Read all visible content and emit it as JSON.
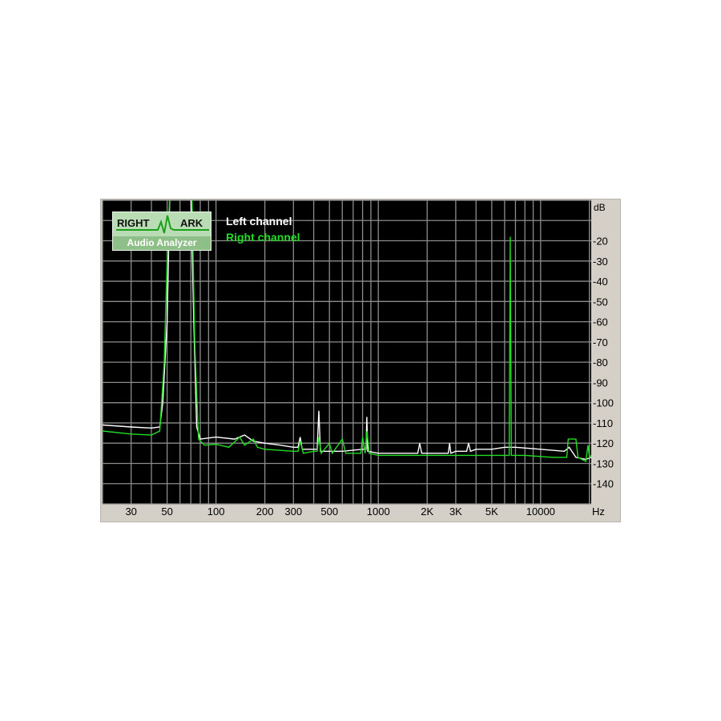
{
  "chart_data": {
    "type": "line",
    "title": "",
    "xscale": "log",
    "xlim": [
      20,
      20500
    ],
    "ylim": [
      -150,
      0
    ],
    "grid": true,
    "legend_placement": "top-left",
    "ylabel": "dB",
    "xlabel": "Hz",
    "yticks": [
      -20,
      -30,
      -40,
      -50,
      -60,
      -70,
      -80,
      -90,
      -100,
      -110,
      -120,
      -130,
      -140
    ],
    "ytick_labels": [
      "-20",
      "-30",
      "-40",
      "-50",
      "-60",
      "-70",
      "-80",
      "-90",
      "-100",
      "-110",
      "-120",
      "-130",
      "-140"
    ],
    "xticks": [
      30,
      50,
      100,
      200,
      300,
      500,
      1000,
      2000,
      3000,
      5000,
      10000
    ],
    "xtick_labels": [
      "30",
      "50",
      "100",
      "200",
      "300",
      "500",
      "1000",
      "2K",
      "3K",
      "5K",
      "10000"
    ],
    "series": [
      {
        "name": "Left channel",
        "color": "#ffffff",
        "points": [
          [
            20,
            -111
          ],
          [
            30,
            -112
          ],
          [
            40,
            -112.5
          ],
          [
            45,
            -112
          ],
          [
            47,
            -100
          ],
          [
            50,
            -60
          ],
          [
            52,
            5
          ],
          [
            70,
            5
          ],
          [
            73,
            -60
          ],
          [
            76,
            -112
          ],
          [
            80,
            -118
          ],
          [
            100,
            -117
          ],
          [
            130,
            -118
          ],
          [
            150,
            -116
          ],
          [
            170,
            -119
          ],
          [
            200,
            -120
          ],
          [
            250,
            -121
          ],
          [
            300,
            -122
          ],
          [
            320,
            -122
          ],
          [
            330,
            -117
          ],
          [
            340,
            -123
          ],
          [
            400,
            -123
          ],
          [
            420,
            -123
          ],
          [
            430,
            -104
          ],
          [
            440,
            -124
          ],
          [
            500,
            -124
          ],
          [
            600,
            -124
          ],
          [
            800,
            -123
          ],
          [
            840,
            -123
          ],
          [
            850,
            -107
          ],
          [
            860,
            -124
          ],
          [
            1000,
            -125
          ],
          [
            1500,
            -125
          ],
          [
            1750,
            -125
          ],
          [
            1800,
            -120
          ],
          [
            1850,
            -125
          ],
          [
            2500,
            -125
          ],
          [
            2700,
            -125
          ],
          [
            2750,
            -120
          ],
          [
            2800,
            -125
          ],
          [
            3000,
            -124
          ],
          [
            3500,
            -124
          ],
          [
            3600,
            -120
          ],
          [
            3700,
            -124
          ],
          [
            4000,
            -123
          ],
          [
            5000,
            -123
          ],
          [
            6000,
            -122
          ],
          [
            7000,
            -122
          ],
          [
            10000,
            -123
          ],
          [
            14000,
            -124
          ],
          [
            15000,
            -122
          ],
          [
            16500,
            -127
          ],
          [
            19000,
            -128
          ],
          [
            20500,
            -127
          ]
        ]
      },
      {
        "name": "Right channel",
        "color": "#22dd22",
        "points": [
          [
            20,
            -114
          ],
          [
            30,
            -115.5
          ],
          [
            40,
            -116
          ],
          [
            45,
            -114
          ],
          [
            48,
            -80
          ],
          [
            50,
            -30
          ],
          [
            52,
            5
          ],
          [
            71,
            5
          ],
          [
            74,
            -70
          ],
          [
            78,
            -118
          ],
          [
            85,
            -121
          ],
          [
            100,
            -120.5
          ],
          [
            120,
            -122
          ],
          [
            140,
            -117
          ],
          [
            150,
            -121
          ],
          [
            170,
            -118
          ],
          [
            180,
            -122
          ],
          [
            200,
            -123
          ],
          [
            300,
            -124
          ],
          [
            320,
            -124
          ],
          [
            330,
            -119
          ],
          [
            345,
            -125
          ],
          [
            400,
            -124
          ],
          [
            420,
            -124
          ],
          [
            430,
            -117
          ],
          [
            445,
            -125
          ],
          [
            500,
            -120
          ],
          [
            520,
            -125
          ],
          [
            600,
            -118
          ],
          [
            630,
            -125
          ],
          [
            780,
            -125
          ],
          [
            800,
            -117
          ],
          [
            830,
            -125
          ],
          [
            850,
            -114
          ],
          [
            880,
            -125
          ],
          [
            1000,
            -126
          ],
          [
            2000,
            -126
          ],
          [
            5000,
            -126
          ],
          [
            6400,
            -126
          ],
          [
            6500,
            -18
          ],
          [
            6600,
            -126
          ],
          [
            8000,
            -126
          ],
          [
            12000,
            -127
          ],
          [
            14500,
            -127
          ],
          [
            14800,
            -118
          ],
          [
            16500,
            -118
          ],
          [
            17000,
            -127
          ],
          [
            19000,
            -129
          ],
          [
            19600,
            -121
          ],
          [
            20000,
            -127
          ],
          [
            20500,
            -126
          ]
        ]
      }
    ]
  },
  "logo": {
    "text_left": "RIGHT",
    "text_right": "ARK",
    "subtitle": "Audio Analyzer"
  },
  "legend": {
    "left": "Left channel",
    "right": "Right channel"
  },
  "colors": {
    "plot_bg": "#000000",
    "grid": "#8c8c8c",
    "panel": "#d4d0c8",
    "left": "#ffffff",
    "right": "#22dd22"
  }
}
